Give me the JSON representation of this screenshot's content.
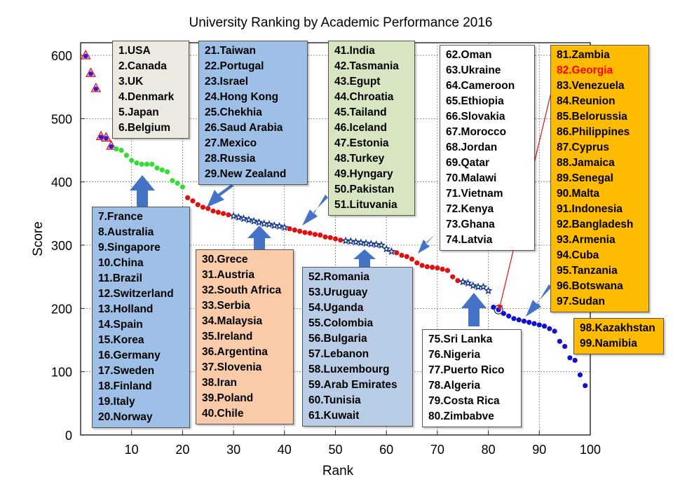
{
  "chart_data": {
    "type": "scatter",
    "title": "University Ranking by Academic Performance 2016",
    "xlabel": "Rank",
    "ylabel": "Score",
    "xlim": [
      0,
      100
    ],
    "ylim": [
      0,
      620
    ],
    "x_ticks": [
      10,
      20,
      30,
      40,
      50,
      60,
      70,
      80,
      90,
      100
    ],
    "y_ticks": [
      0,
      100,
      200,
      300,
      400,
      500,
      600
    ],
    "grid": true,
    "x": [
      1,
      2,
      3,
      4,
      5,
      6,
      7,
      8,
      9,
      10,
      11,
      12,
      13,
      14,
      15,
      16,
      17,
      18,
      19,
      20,
      21,
      22,
      23,
      24,
      25,
      26,
      27,
      28,
      29,
      30,
      31,
      32,
      33,
      34,
      35,
      36,
      37,
      38,
      39,
      40,
      41,
      42,
      43,
      44,
      45,
      46,
      47,
      48,
      49,
      50,
      51,
      52,
      53,
      54,
      55,
      56,
      57,
      58,
      59,
      60,
      61,
      62,
      63,
      64,
      65,
      66,
      67,
      68,
      69,
      70,
      71,
      72,
      73,
      74,
      75,
      76,
      77,
      78,
      79,
      80,
      81,
      82,
      83,
      84,
      85,
      86,
      87,
      88,
      89,
      90,
      91,
      92,
      93,
      94,
      95,
      96,
      97,
      98,
      99
    ],
    "y": [
      600,
      572,
      548,
      472,
      470,
      457,
      452,
      450,
      442,
      434,
      430,
      428,
      428,
      428,
      422,
      419,
      416,
      402,
      398,
      392,
      375,
      370,
      364,
      360,
      358,
      354,
      352,
      350,
      348,
      346,
      344,
      342,
      340,
      338,
      336,
      334,
      333,
      331,
      330,
      328,
      326,
      324,
      322,
      320,
      319,
      317,
      316,
      313,
      312,
      310,
      308,
      307,
      306,
      305,
      304,
      303,
      302,
      301,
      300,
      294,
      290,
      288,
      284,
      282,
      278,
      272,
      268,
      266,
      265,
      264,
      262,
      260,
      250,
      244,
      242,
      240,
      236,
      234,
      234,
      228,
      202,
      198,
      192,
      188,
      184,
      182,
      180,
      178,
      176,
      174,
      172,
      168,
      164,
      148,
      140,
      122,
      118,
      95,
      78
    ],
    "series_colors": {
      "top": "#2222cc",
      "green": "#33dd33",
      "red": "#dd1111",
      "blue": "#1111cc",
      "star": "#1a3aa8",
      "star_center": "#ffff66",
      "triangle": "#ff99dd",
      "triangle_edge": "#dd0000"
    },
    "annotation_boxes": [
      {
        "id": "box-1-6",
        "items": [
          "1.USA",
          "2.Canada",
          "3.UK",
          "4.Denmark",
          "5.Japan",
          "6.Belgium"
        ]
      },
      {
        "id": "box-7-20",
        "items": [
          "7.France",
          "8.Australia",
          "9.Singapore",
          "10.China",
          "11.Brazil",
          "12.Switzerland",
          "13.Holland",
          "14.Spain",
          "15.Korea",
          "16.Germany",
          "17.Sweden",
          "18.Finland",
          "19.Italy",
          "20.Norway"
        ]
      },
      {
        "id": "box-21-29",
        "items": [
          "21.Taiwan",
          "22.Portugal",
          "23.Israel",
          "24.Hong Kong",
          "25.Chekhia",
          "26.Saud Arabia",
          "27.Mexico",
          "28.Russia",
          "29.New Zealand"
        ]
      },
      {
        "id": "box-30-40",
        "items": [
          "30.Grece",
          "31.Austria",
          "32.South Africa",
          "33.Serbia",
          "34.Malaysia",
          "35.Ireland",
          "36.Argentina",
          "37.Slovenia",
          "38.Iran",
          "39.Poland",
          "40.Chile"
        ]
      },
      {
        "id": "box-41-51",
        "items": [
          "41.India",
          "42.Tasmania",
          "43.Egupt",
          "44.Chroatia",
          "45.Tailand",
          "46.Iceland",
          "47.Estonia",
          "48.Turkey",
          "49.Hyngary",
          "50.Pakistan",
          "51.Lituvania"
        ]
      },
      {
        "id": "box-52-61",
        "items": [
          "52.Romania",
          "53.Uruguay",
          "54.Uganda",
          "55.Colombia",
          "56.Bulgaria",
          "57.Lebanon",
          "58.Luxembourg",
          "59.Arab Emirates",
          "60.Tunisia",
          "61.Kuwait"
        ]
      },
      {
        "id": "box-62-74",
        "items": [
          "62.Oman",
          "63.Ukraine",
          "64.Cameroon",
          "65.Ethiopia",
          "66.Slovakia",
          "67.Morocco",
          "68.Jordan",
          "69.Qatar",
          "70.Malawi",
          "71.Vietnam",
          "72.Kenya",
          "73.Ghana",
          "74.Latvia"
        ]
      },
      {
        "id": "box-75-80",
        "items": [
          "75.Sri Lanka",
          "76.Nigeria",
          "77.Puerto Rico",
          "78.Algeria",
          "79.Costa Rica",
          "80.Zimbabve"
        ]
      },
      {
        "id": "box-81-97",
        "items": [
          "81.Zambia",
          "82.Georgia",
          "83.Venezuela",
          "84.Reunion",
          "85.Belorussia",
          "86.Philippines",
          "87.Cyprus",
          "88.Jamaica",
          "89.Senegal",
          "90.Malta",
          "91.Indonesia",
          "92.Bangladesh",
          "93.Armenia",
          "94.Cuba",
          "95.Tanzania",
          "96.Botswana",
          "97.Sudan"
        ]
      },
      {
        "id": "box-98-99",
        "items": [
          "98.Kazakhstan",
          "99.Namibia"
        ]
      }
    ],
    "highlight": {
      "rank": 82,
      "label": "82.Georgia",
      "color": "#ff0000"
    }
  }
}
